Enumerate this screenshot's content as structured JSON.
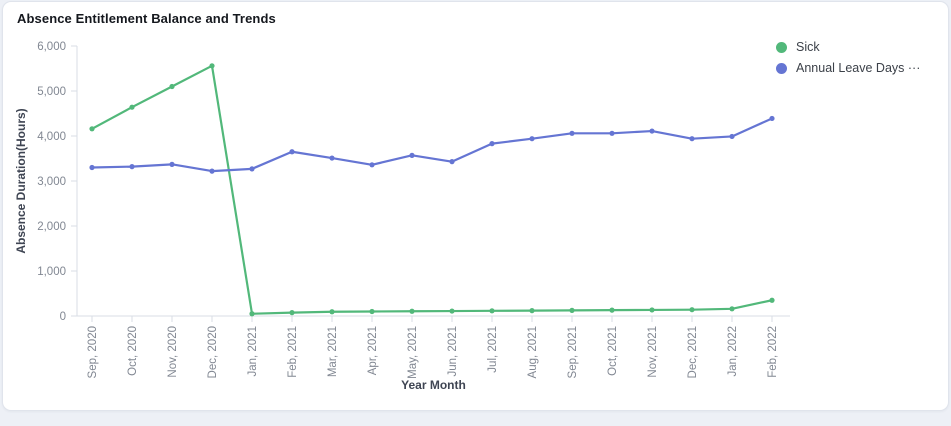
{
  "card": {
    "title": "Absence Entitlement Balance and Trends"
  },
  "colors": {
    "sick": "#52b87a",
    "annual_leave": "#6575d3",
    "axis_line": "#d9dde5",
    "tick_mark": "#d9dde5",
    "tick_label": "#818792",
    "axis_title": "#3f4553",
    "legend_text": "#3c4149",
    "card_border": "#e0e4ec",
    "card_bg": "#ffffff",
    "page_bg": "#edf0f6",
    "title_text": "#15181e"
  },
  "chart_data": {
    "type": "line",
    "title": "Absence Entitlement Balance and Trends",
    "xlabel": "Year Month",
    "ylabel": "Absence Duration(Hours)",
    "ylim": [
      0,
      6000
    ],
    "y_ticks": [
      0,
      1000,
      2000,
      3000,
      4000,
      5000,
      6000
    ],
    "y_tick_labels": [
      "0",
      "1,000",
      "2,000",
      "3,000",
      "4,000",
      "5,000",
      "6,000"
    ],
    "grid": false,
    "legend_position": "top-right",
    "marker": "circle",
    "categories": [
      "Sep, 2020",
      "Oct, 2020",
      "Nov, 2020",
      "Dec, 2020",
      "Jan, 2021",
      "Feb, 2021",
      "Mar, 2021",
      "Apr, 2021",
      "May, 2021",
      "Jun, 2021",
      "Jul, 2021",
      "Aug, 2021",
      "Sep, 2021",
      "Oct, 2021",
      "Nov, 2021",
      "Dec, 2021",
      "Jan, 2022",
      "Feb, 2022"
    ],
    "series": [
      {
        "name": "Sick",
        "legend_label": "Sick",
        "color": "#52b87a",
        "values": [
          4160,
          4640,
          5100,
          5560,
          50,
          75,
          95,
          100,
          105,
          110,
          115,
          120,
          125,
          130,
          135,
          140,
          160,
          350
        ]
      },
      {
        "name": "Annual Leave Days",
        "legend_label": "Annual Leave Days ···",
        "color": "#6575d3",
        "values": [
          3300,
          3320,
          3370,
          3220,
          3270,
          3650,
          3510,
          3360,
          3570,
          3430,
          3830,
          3940,
          4060,
          4060,
          4110,
          3940,
          3990,
          4390
        ]
      }
    ]
  }
}
